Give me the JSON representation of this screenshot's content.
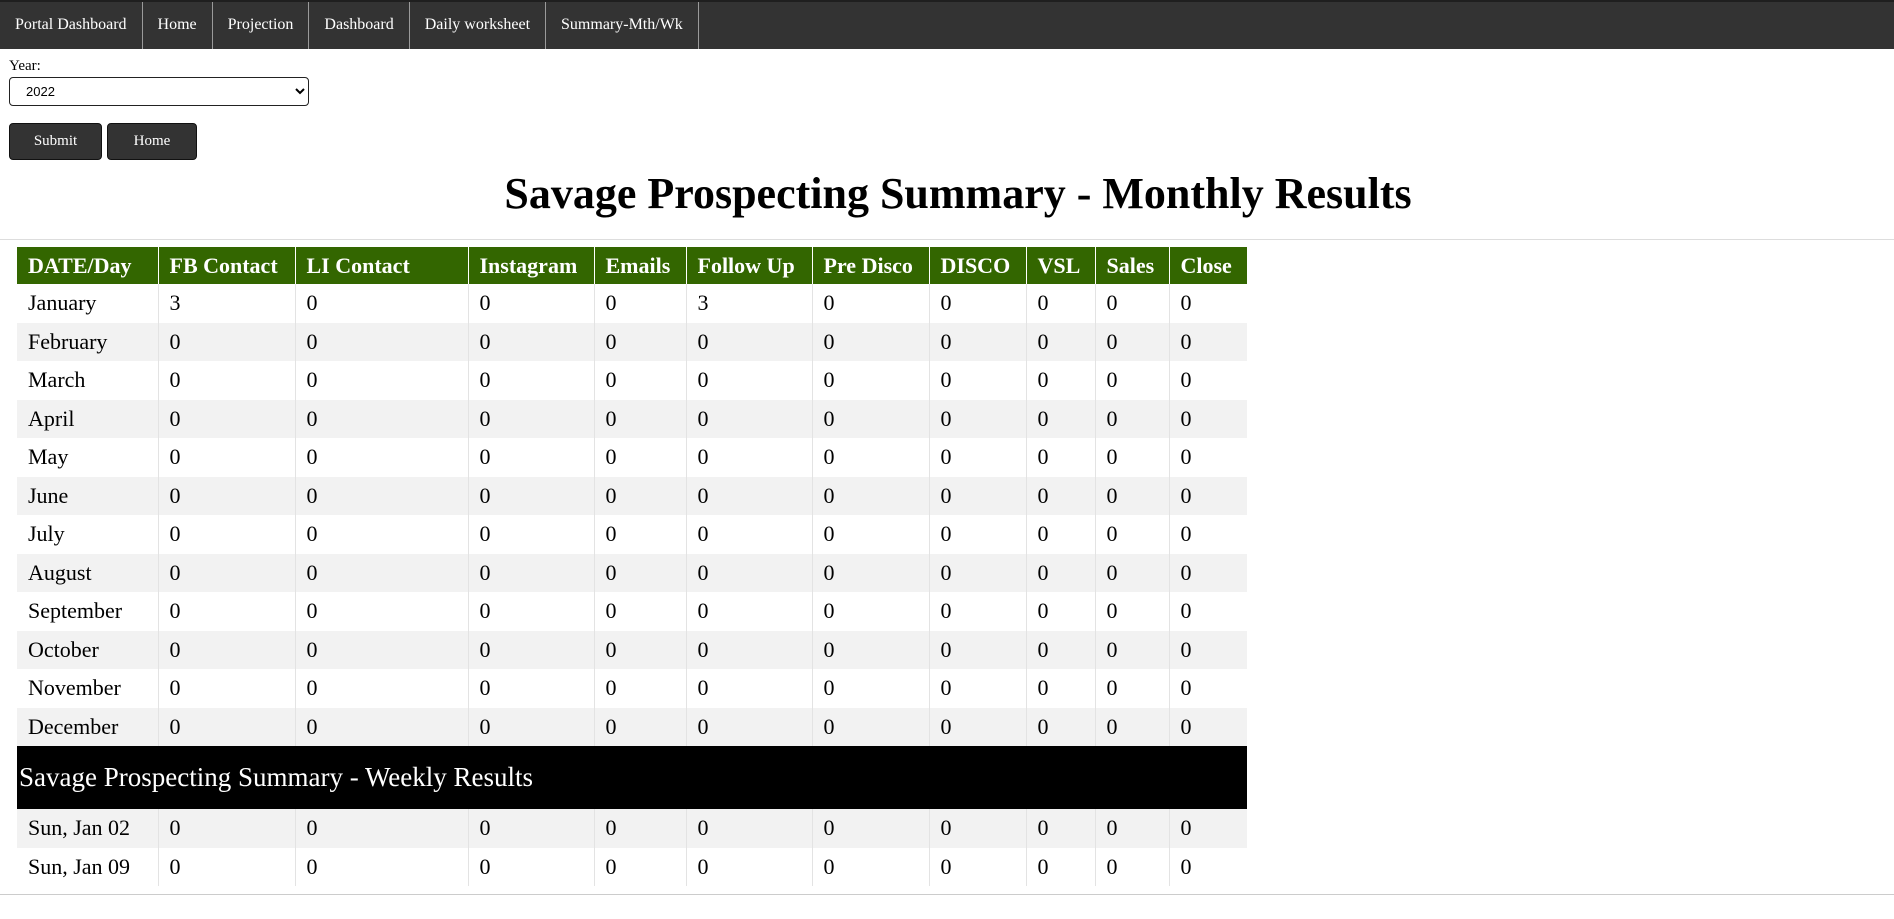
{
  "nav": [
    "Portal Dashboard",
    "Home",
    "Projection",
    "Dashboard",
    "Daily worksheet",
    "Summary-Mth/Wk"
  ],
  "form": {
    "year_label": "Year:",
    "year_value": "2022",
    "submit_label": "Submit",
    "home_label": "Home"
  },
  "page_title": "Savage Prospecting Summary - Monthly Results",
  "table": {
    "headers": [
      "DATE/Day",
      "FB Contact",
      "LI Contact",
      "Instagram",
      "Emails",
      "Follow Up",
      "Pre Disco",
      "DISCO",
      "VSL",
      "Sales",
      "Close"
    ],
    "monthly_rows": [
      [
        "January",
        "3",
        "0",
        "0",
        "0",
        "3",
        "0",
        "0",
        "0",
        "0",
        "0"
      ],
      [
        "February",
        "0",
        "0",
        "0",
        "0",
        "0",
        "0",
        "0",
        "0",
        "0",
        "0"
      ],
      [
        "March",
        "0",
        "0",
        "0",
        "0",
        "0",
        "0",
        "0",
        "0",
        "0",
        "0"
      ],
      [
        "April",
        "0",
        "0",
        "0",
        "0",
        "0",
        "0",
        "0",
        "0",
        "0",
        "0"
      ],
      [
        "May",
        "0",
        "0",
        "0",
        "0",
        "0",
        "0",
        "0",
        "0",
        "0",
        "0"
      ],
      [
        "June",
        "0",
        "0",
        "0",
        "0",
        "0",
        "0",
        "0",
        "0",
        "0",
        "0"
      ],
      [
        "July",
        "0",
        "0",
        "0",
        "0",
        "0",
        "0",
        "0",
        "0",
        "0",
        "0"
      ],
      [
        "August",
        "0",
        "0",
        "0",
        "0",
        "0",
        "0",
        "0",
        "0",
        "0",
        "0"
      ],
      [
        "September",
        "0",
        "0",
        "0",
        "0",
        "0",
        "0",
        "0",
        "0",
        "0",
        "0"
      ],
      [
        "October",
        "0",
        "0",
        "0",
        "0",
        "0",
        "0",
        "0",
        "0",
        "0",
        "0"
      ],
      [
        "November",
        "0",
        "0",
        "0",
        "0",
        "0",
        "0",
        "0",
        "0",
        "0",
        "0"
      ],
      [
        "December",
        "0",
        "0",
        "0",
        "0",
        "0",
        "0",
        "0",
        "0",
        "0",
        "0"
      ]
    ],
    "weekly_title": "Savage Prospecting Summary - Weekly Results",
    "weekly_rows": [
      [
        "Sun, Jan 02",
        "0",
        "0",
        "0",
        "0",
        "0",
        "0",
        "0",
        "0",
        "0",
        "0"
      ],
      [
        "Sun, Jan 09",
        "0",
        "0",
        "0",
        "0",
        "0",
        "0",
        "0",
        "0",
        "0",
        "0"
      ]
    ]
  },
  "colors": {
    "nav_bg": "#333333",
    "header_bg": "#336600",
    "weekly_bar_bg": "#000000",
    "stripe": "#f2f2f2"
  }
}
